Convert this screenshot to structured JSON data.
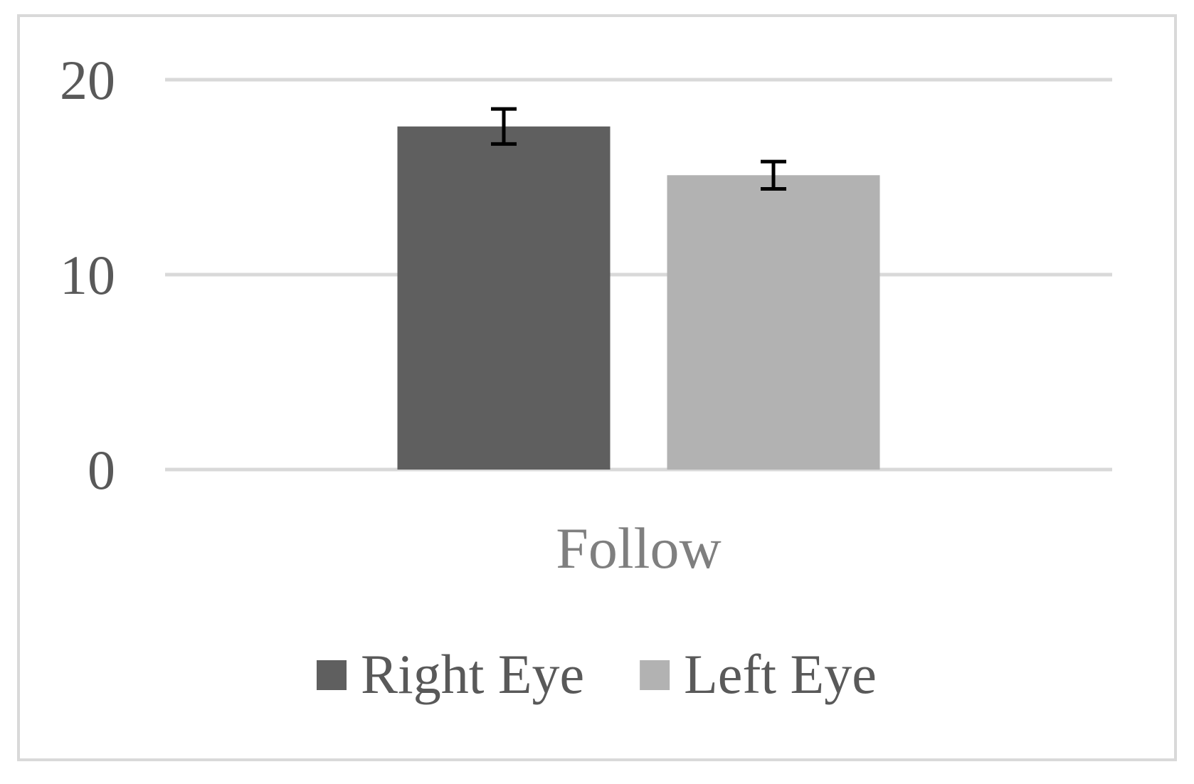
{
  "chart_data": {
    "type": "bar",
    "categories": [
      "Follow"
    ],
    "series": [
      {
        "name": "Right Eye",
        "values": [
          17.6
        ],
        "error": [
          0.9
        ],
        "color": "#5f5f5f"
      },
      {
        "name": "Left Eye",
        "values": [
          15.1
        ],
        "error": [
          0.7
        ],
        "color": "#b2b2b2"
      }
    ],
    "title": "",
    "xlabel": "",
    "ylabel": "",
    "ylim": [
      0,
      20
    ],
    "yticks": [
      "0",
      "10",
      "20"
    ],
    "grid": true,
    "gridline_color": "#d9d9d9",
    "error_bar_color": "#000000",
    "legend_position": "bottom"
  }
}
